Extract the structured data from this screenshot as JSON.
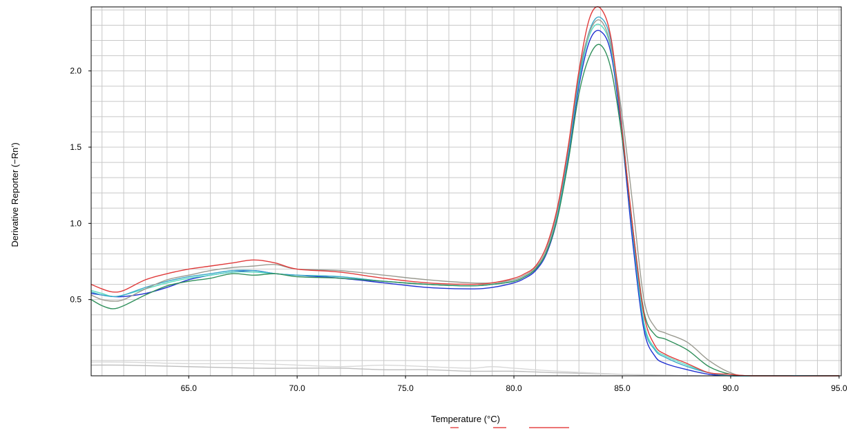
{
  "chart_data": {
    "type": "line",
    "title": "",
    "xlabel": "Temperature (°C)",
    "ylabel": "Derivative Reporter (−Rn’)",
    "xlim": [
      60.5,
      95.1
    ],
    "ylim": [
      0,
      2.42
    ],
    "x_ticks": [
      65.0,
      70.0,
      75.0,
      80.0,
      85.0,
      90.0,
      95.0
    ],
    "x_tick_labels": [
      "65.0",
      "70.0",
      "75.0",
      "80.0",
      "85.0",
      "90.0",
      "95.0"
    ],
    "y_ticks": [
      0.5,
      1.0,
      1.5,
      2.0
    ],
    "y_tick_labels": [
      "0.5",
      "1.0",
      "1.5",
      "2.0"
    ],
    "x_minor_step": 1.0,
    "y_minor_step": 0.1,
    "grid": true,
    "legend": "none",
    "series": [
      {
        "color": "#e03a3a",
        "x": [
          60.5,
          61.0,
          61.5,
          62.0,
          63.0,
          64.0,
          65.0,
          66.0,
          67.0,
          68.0,
          69.0,
          70.0,
          72.0,
          74.0,
          76.0,
          78.0,
          79.0,
          80.0,
          80.5,
          81.0,
          81.5,
          82.0,
          82.5,
          83.0,
          83.5,
          84.0,
          84.5,
          85.0,
          85.5,
          86.0,
          86.5,
          87.0,
          88.0,
          89.0,
          90.0,
          91.0,
          95.0
        ],
        "y": [
          0.6,
          0.57,
          0.55,
          0.56,
          0.63,
          0.67,
          0.7,
          0.72,
          0.74,
          0.76,
          0.74,
          0.7,
          0.68,
          0.64,
          0.61,
          0.6,
          0.61,
          0.64,
          0.67,
          0.72,
          0.85,
          1.1,
          1.5,
          2.0,
          2.35,
          2.41,
          2.2,
          1.6,
          0.95,
          0.4,
          0.2,
          0.14,
          0.08,
          0.02,
          0.01,
          0.0,
          0.0
        ]
      },
      {
        "color": "#9a9a90",
        "x": [
          60.5,
          61.0,
          61.5,
          62.0,
          63.0,
          64.0,
          65.0,
          66.0,
          67.0,
          68.0,
          69.0,
          70.0,
          72.0,
          74.0,
          76.0,
          78.0,
          79.0,
          80.0,
          80.5,
          81.0,
          81.5,
          82.0,
          82.5,
          83.0,
          83.5,
          84.0,
          84.5,
          85.0,
          85.5,
          86.0,
          86.5,
          87.0,
          88.0,
          89.0,
          90.0,
          91.0,
          95.0
        ],
        "y": [
          0.53,
          0.5,
          0.49,
          0.5,
          0.57,
          0.63,
          0.66,
          0.69,
          0.71,
          0.72,
          0.73,
          0.7,
          0.69,
          0.66,
          0.63,
          0.61,
          0.61,
          0.63,
          0.66,
          0.71,
          0.83,
          1.08,
          1.48,
          1.98,
          2.26,
          2.33,
          2.15,
          1.7,
          1.1,
          0.5,
          0.32,
          0.28,
          0.22,
          0.1,
          0.02,
          0.0,
          0.0
        ]
      },
      {
        "color": "#2f8f5a",
        "x": [
          60.5,
          61.0,
          61.5,
          62.0,
          63.0,
          64.0,
          65.0,
          66.0,
          67.0,
          68.0,
          69.0,
          70.0,
          72.0,
          74.0,
          76.0,
          78.0,
          79.0,
          80.0,
          80.5,
          81.0,
          81.5,
          82.0,
          82.5,
          83.0,
          83.5,
          84.0,
          84.5,
          85.0,
          85.5,
          86.0,
          86.5,
          87.0,
          88.0,
          89.0,
          90.0,
          91.0,
          95.0
        ],
        "y": [
          0.5,
          0.46,
          0.44,
          0.46,
          0.53,
          0.59,
          0.62,
          0.64,
          0.67,
          0.66,
          0.67,
          0.65,
          0.64,
          0.62,
          0.6,
          0.59,
          0.6,
          0.62,
          0.65,
          0.7,
          0.81,
          1.03,
          1.4,
          1.85,
          2.1,
          2.17,
          2.0,
          1.55,
          0.95,
          0.42,
          0.27,
          0.24,
          0.17,
          0.06,
          0.01,
          0.0,
          0.0
        ]
      },
      {
        "color": "#3aa8c8",
        "x": [
          60.5,
          61.0,
          61.5,
          62.0,
          63.0,
          64.0,
          65.0,
          66.0,
          67.0,
          68.0,
          69.0,
          70.0,
          72.0,
          74.0,
          76.0,
          78.0,
          79.0,
          80.0,
          80.5,
          81.0,
          81.5,
          82.0,
          82.5,
          83.0,
          83.5,
          84.0,
          84.5,
          85.0,
          85.5,
          86.0,
          86.5,
          87.0,
          88.0,
          89.0,
          90.0,
          91.0,
          95.0
        ],
        "y": [
          0.55,
          0.53,
          0.52,
          0.53,
          0.58,
          0.62,
          0.65,
          0.67,
          0.69,
          0.69,
          0.67,
          0.66,
          0.65,
          0.62,
          0.6,
          0.59,
          0.6,
          0.62,
          0.65,
          0.7,
          0.81,
          1.05,
          1.45,
          1.95,
          2.27,
          2.35,
          2.18,
          1.62,
          0.9,
          0.33,
          0.17,
          0.12,
          0.06,
          0.02,
          0.0,
          0.0,
          0.0
        ]
      },
      {
        "color": "#5adcc0",
        "x": [
          60.5,
          61.0,
          61.5,
          62.0,
          63.0,
          64.0,
          65.0,
          66.0,
          67.0,
          68.0,
          69.0,
          70.0,
          72.0,
          74.0,
          76.0,
          78.0,
          79.0,
          80.0,
          80.5,
          81.0,
          81.5,
          82.0,
          82.5,
          83.0,
          83.5,
          84.0,
          84.5,
          85.0,
          85.5,
          86.0,
          86.5,
          87.0,
          88.0,
          89.0,
          90.0,
          91.0,
          95.0
        ],
        "y": [
          0.56,
          0.54,
          0.52,
          0.53,
          0.57,
          0.61,
          0.64,
          0.66,
          0.68,
          0.68,
          0.67,
          0.66,
          0.65,
          0.62,
          0.6,
          0.59,
          0.6,
          0.62,
          0.65,
          0.7,
          0.81,
          1.05,
          1.45,
          1.93,
          2.24,
          2.3,
          2.13,
          1.6,
          0.92,
          0.35,
          0.18,
          0.13,
          0.07,
          0.02,
          0.0,
          0.0,
          0.0
        ]
      },
      {
        "color": "#1f2fd0",
        "x": [
          60.5,
          61.0,
          61.5,
          62.0,
          63.0,
          64.0,
          65.0,
          66.0,
          67.0,
          68.0,
          69.0,
          70.0,
          72.0,
          74.0,
          76.0,
          78.0,
          79.0,
          80.0,
          80.5,
          81.0,
          81.5,
          82.0,
          82.5,
          83.0,
          83.5,
          84.0,
          84.5,
          85.0,
          85.5,
          86.0,
          86.5,
          87.0,
          88.0,
          89.0,
          90.0,
          91.0,
          95.0
        ],
        "y": [
          0.54,
          0.53,
          0.52,
          0.52,
          0.54,
          0.58,
          0.63,
          0.66,
          0.68,
          0.69,
          0.67,
          0.66,
          0.64,
          0.61,
          0.58,
          0.57,
          0.58,
          0.61,
          0.64,
          0.69,
          0.8,
          1.03,
          1.42,
          1.9,
          2.2,
          2.26,
          2.1,
          1.55,
          0.85,
          0.3,
          0.13,
          0.08,
          0.04,
          0.01,
          0.0,
          0.0,
          0.0
        ]
      },
      {
        "color": "#d8d8d8",
        "x": [
          60.5,
          62.0,
          65.0,
          68.0,
          70.0,
          72.0,
          74.0,
          76.0,
          78.0,
          79.0,
          80.0,
          82.0,
          85.0,
          88.0,
          90.0,
          95.0
        ],
        "y": [
          0.09,
          0.09,
          0.08,
          0.08,
          0.07,
          0.06,
          0.07,
          0.06,
          0.05,
          0.06,
          0.05,
          0.03,
          0.01,
          0.0,
          0.0,
          0.0
        ]
      },
      {
        "color": "#bdbdbd",
        "x": [
          60.5,
          62.0,
          65.0,
          68.0,
          70.0,
          72.0,
          74.0,
          76.0,
          78.0,
          80.0,
          82.0,
          85.0,
          88.0,
          90.0,
          95.0
        ],
        "y": [
          0.07,
          0.07,
          0.06,
          0.05,
          0.05,
          0.05,
          0.04,
          0.04,
          0.03,
          0.03,
          0.02,
          0.01,
          0.0,
          0.0,
          0.0
        ]
      }
    ]
  }
}
